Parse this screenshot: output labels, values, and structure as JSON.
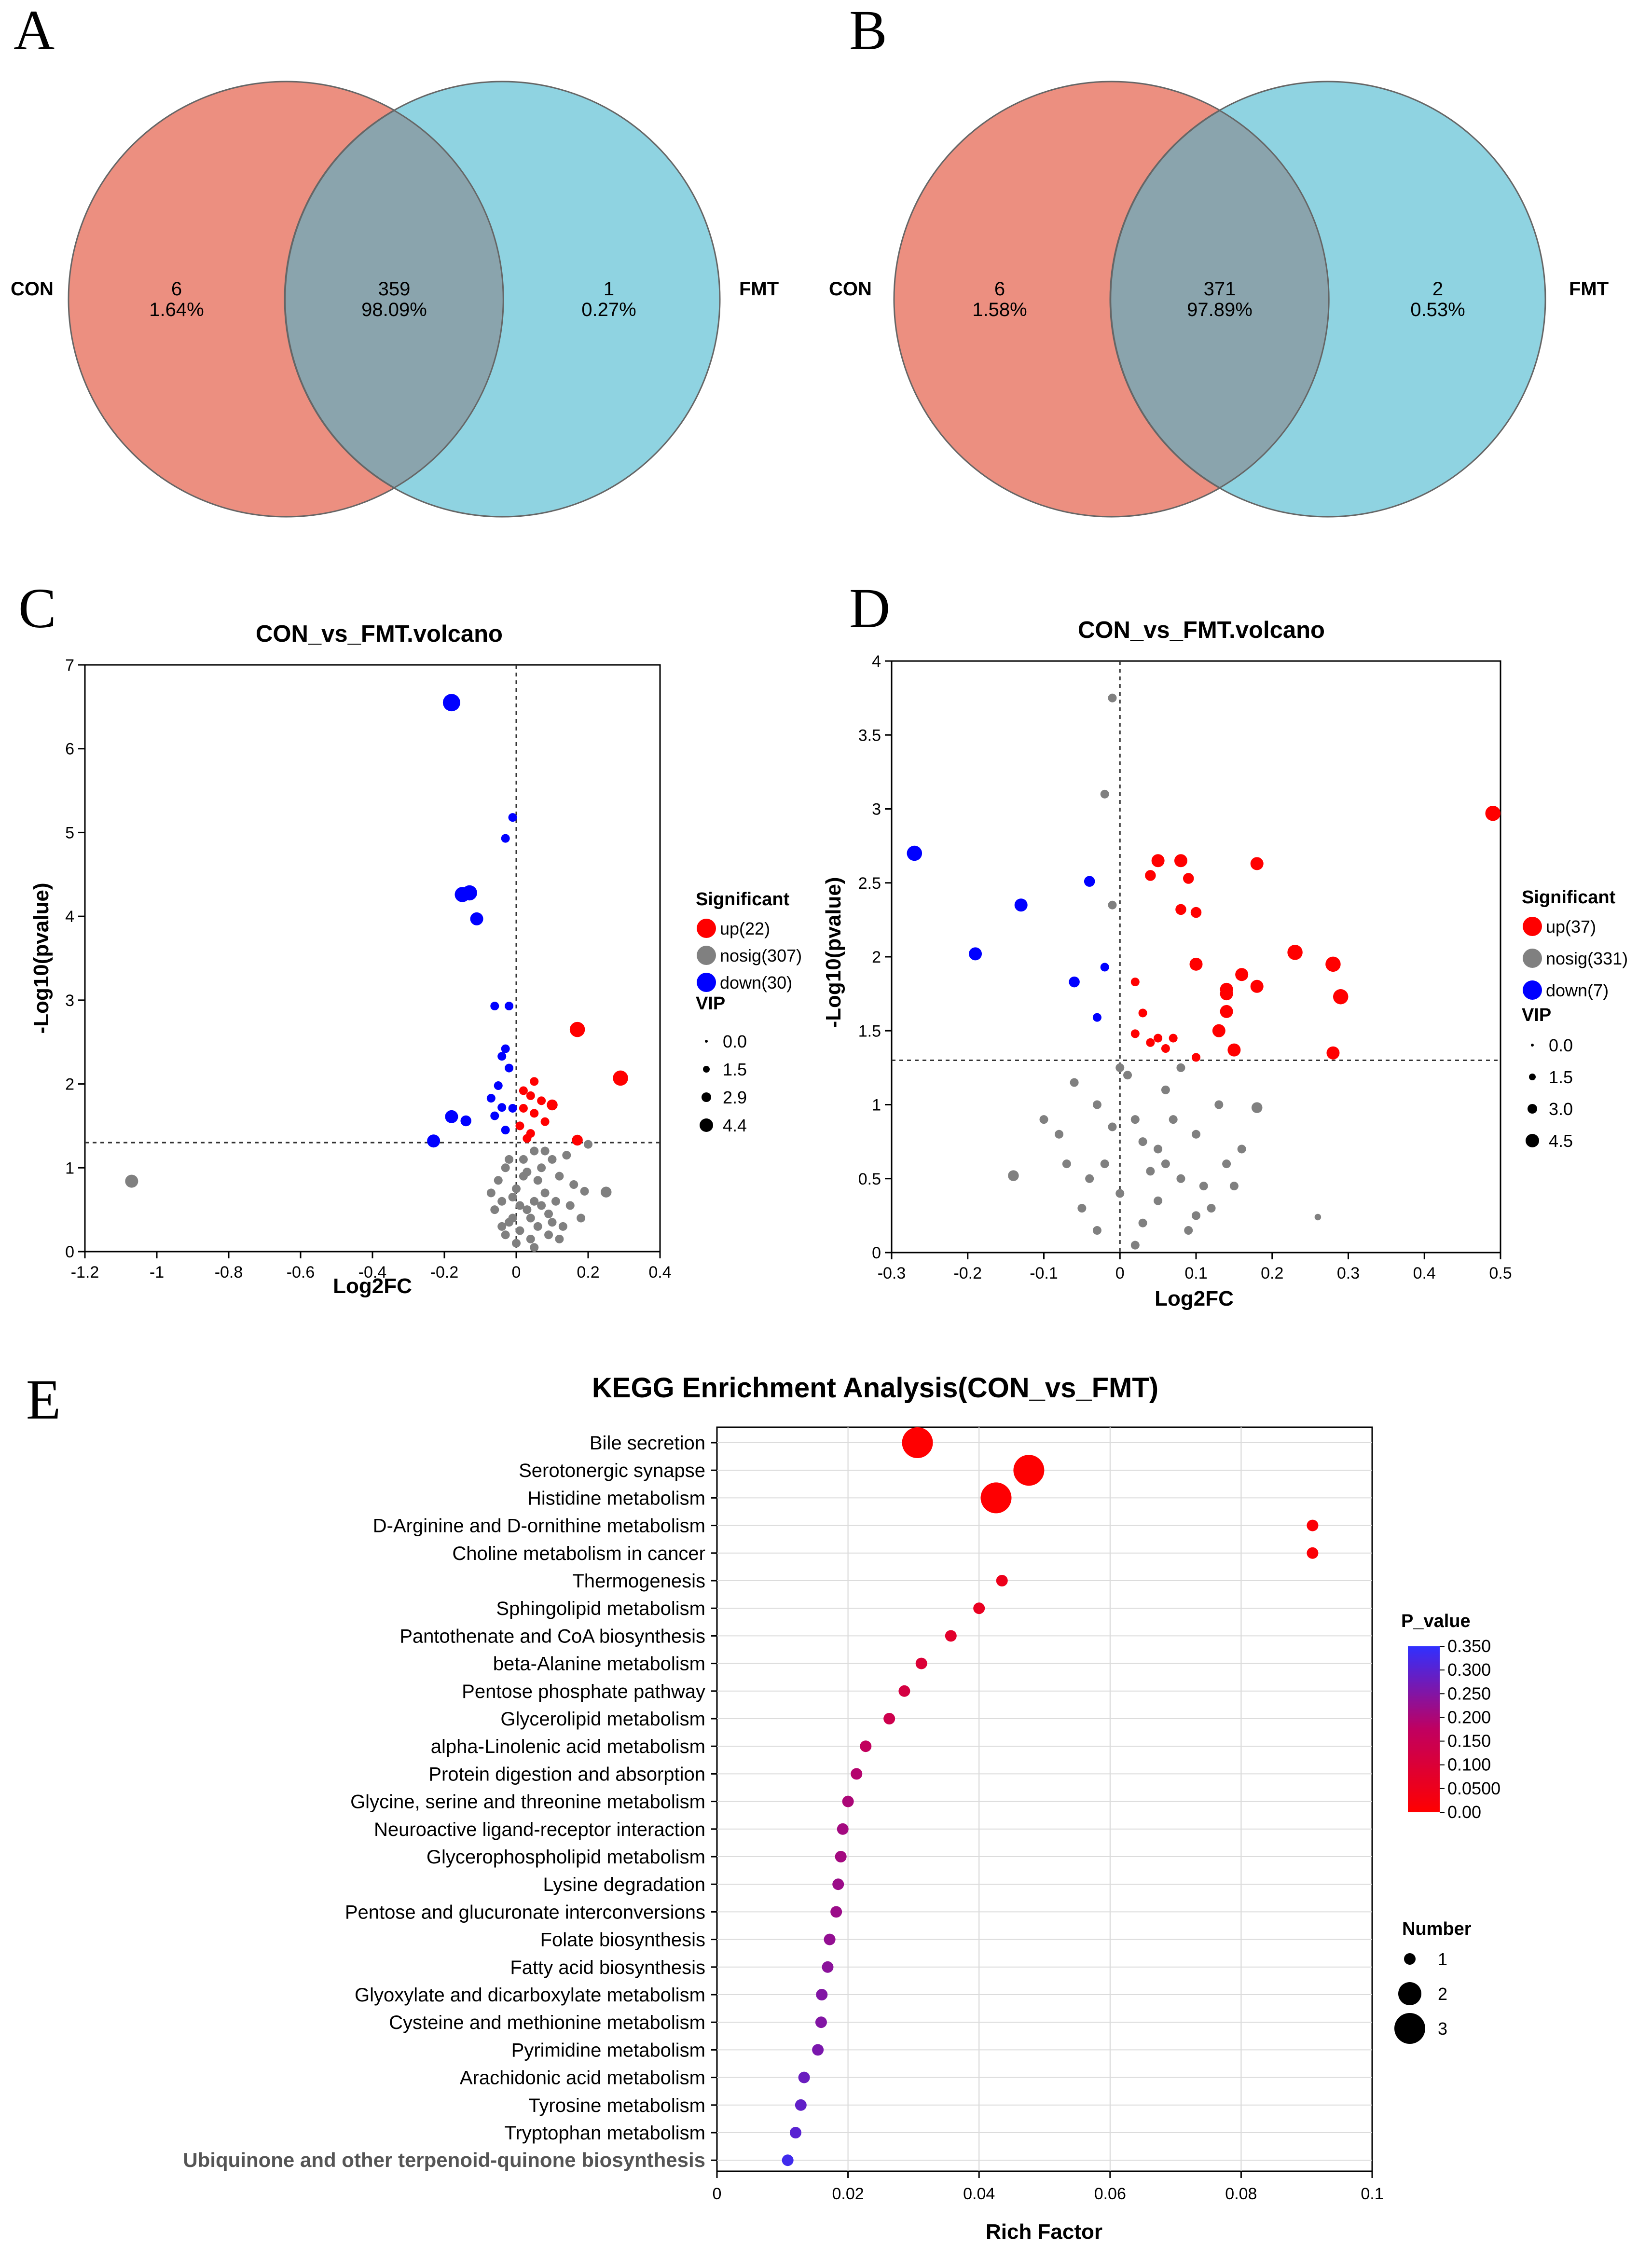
{
  "panels": {
    "a": {
      "letter": "A"
    },
    "b": {
      "letter": "B"
    },
    "c": {
      "letter": "C"
    },
    "d": {
      "letter": "D"
    },
    "e": {
      "letter": "E"
    }
  },
  "colors": {
    "con": "#ec8f80",
    "fmt": "#8fd3e1",
    "overlap": "#8aa4ad",
    "up": "#ff0000",
    "down": "#0000ff",
    "nosig": "#808080"
  },
  "chart_data": [
    {
      "type": "venn",
      "id": "A",
      "left_label": "CON",
      "right_label": "FMT",
      "regions": {
        "left_only": {
          "count": "6",
          "percent": "1.64%"
        },
        "both": {
          "count": "359",
          "percent": "98.09%"
        },
        "right_only": {
          "count": "1",
          "percent": "0.27%"
        }
      }
    },
    {
      "type": "venn",
      "id": "B",
      "left_label": "CON",
      "right_label": "FMT",
      "regions": {
        "left_only": {
          "count": "6",
          "percent": "1.58%"
        },
        "both": {
          "count": "371",
          "percent": "97.89%"
        },
        "right_only": {
          "count": "2",
          "percent": "0.53%"
        }
      }
    },
    {
      "type": "scatter",
      "id": "C",
      "title": "CON_vs_FMT.volcano",
      "xlabel": "Log2FC",
      "ylabel": "-Log10(pvalue)",
      "xlim": [
        -1.2,
        0.4
      ],
      "ylim": [
        0,
        7
      ],
      "xticks": [
        "-1.2",
        "-1",
        "-0.8",
        "-0.6",
        "-0.4",
        "-0.2",
        "0",
        "0.2",
        "0.4"
      ],
      "yticks": [
        "0",
        "1",
        "2",
        "3",
        "4",
        "5",
        "6",
        "7"
      ],
      "threshold_y": 1.3,
      "legend_significant_title": "Significant",
      "legend_significant": [
        {
          "key": "up",
          "label": "up(22)"
        },
        {
          "key": "nosig",
          "label": "nosig(307)"
        },
        {
          "key": "down",
          "label": "down(30)"
        }
      ],
      "legend_vip_title": "VIP",
      "legend_vip": [
        "0.0",
        "1.5",
        "2.9",
        "4.4"
      ],
      "points": {
        "down": [
          [
            -0.18,
            6.55,
            4
          ],
          [
            -0.01,
            5.18,
            2
          ],
          [
            -0.03,
            4.93,
            2
          ],
          [
            -0.13,
            4.28,
            3.5
          ],
          [
            -0.15,
            4.26,
            3.5
          ],
          [
            -0.11,
            3.97,
            3
          ],
          [
            -0.06,
            2.93,
            2
          ],
          [
            -0.02,
            2.93,
            2
          ],
          [
            -0.03,
            2.42,
            2
          ],
          [
            -0.04,
            2.33,
            2
          ],
          [
            -0.02,
            2.19,
            2
          ],
          [
            -0.05,
            1.98,
            2
          ],
          [
            -0.07,
            1.83,
            2
          ],
          [
            -0.04,
            1.72,
            2
          ],
          [
            -0.01,
            1.71,
            2
          ],
          [
            -0.06,
            1.62,
            2
          ],
          [
            -0.18,
            1.61,
            3
          ],
          [
            -0.14,
            1.56,
            2.5
          ],
          [
            -0.23,
            1.32,
            3
          ],
          [
            -0.03,
            1.45,
            2
          ]
        ],
        "up": [
          [
            0.17,
            2.65,
            3.5
          ],
          [
            0.29,
            2.07,
            3.5
          ],
          [
            0.05,
            2.03,
            2
          ],
          [
            0.02,
            1.92,
            2
          ],
          [
            0.04,
            1.86,
            2
          ],
          [
            0.07,
            1.8,
            2
          ],
          [
            0.1,
            1.75,
            2.5
          ],
          [
            0.02,
            1.71,
            2
          ],
          [
            0.05,
            1.65,
            2
          ],
          [
            0.08,
            1.55,
            2
          ],
          [
            0.01,
            1.5,
            2
          ],
          [
            0.04,
            1.41,
            2
          ],
          [
            0.17,
            1.33,
            2.5
          ],
          [
            0.03,
            1.35,
            2
          ]
        ],
        "nosig": [
          [
            -1.07,
            0.84,
            3
          ],
          [
            0.25,
            0.71,
            2.5
          ],
          [
            0.19,
            0.72,
            2
          ],
          [
            0.2,
            1.28,
            2
          ],
          [
            0.1,
            1.1,
            2
          ],
          [
            0.05,
            1.2,
            2
          ],
          [
            -0.02,
            1.1,
            2
          ],
          [
            0.12,
            0.9,
            2
          ],
          [
            0.15,
            0.55,
            2
          ],
          [
            0.08,
            0.7,
            2
          ],
          [
            -0.04,
            0.6,
            2
          ],
          [
            0.02,
            0.9,
            2
          ],
          [
            -0.01,
            0.4,
            2
          ],
          [
            0.06,
            0.3,
            2
          ],
          [
            0.03,
            0.5,
            2
          ],
          [
            -0.03,
            0.2,
            2
          ],
          [
            0.09,
            0.45,
            2
          ],
          [
            0.0,
            0.75,
            2
          ],
          [
            0.04,
            0.15,
            2
          ],
          [
            -0.05,
            0.85,
            2
          ],
          [
            0.11,
            0.6,
            2
          ],
          [
            0.13,
            0.3,
            2
          ],
          [
            -0.06,
            0.5,
            2
          ],
          [
            0.07,
            1.0,
            2
          ],
          [
            0.01,
            0.25,
            2
          ],
          [
            0.16,
            0.8,
            2
          ],
          [
            -0.02,
            0.35,
            2
          ],
          [
            0.05,
            0.6,
            2
          ],
          [
            0.09,
            0.2,
            2
          ],
          [
            0.02,
            1.1,
            2
          ],
          [
            -0.07,
            0.7,
            2
          ],
          [
            0.14,
            1.15,
            2
          ],
          [
            0.06,
            0.85,
            2
          ],
          [
            0.0,
            0.1,
            2
          ],
          [
            0.03,
            0.95,
            2
          ],
          [
            -0.01,
            0.65,
            2
          ],
          [
            0.1,
            0.35,
            2
          ],
          [
            0.08,
            1.2,
            2
          ],
          [
            0.04,
            0.4,
            2
          ],
          [
            -0.03,
            1.0,
            2
          ],
          [
            0.12,
            0.15,
            2
          ],
          [
            0.01,
            0.55,
            2
          ],
          [
            0.07,
            0.55,
            2
          ],
          [
            -0.04,
            0.3,
            2
          ],
          [
            0.05,
            0.05,
            2
          ],
          [
            0.18,
            0.4,
            2
          ]
        ]
      }
    },
    {
      "type": "scatter",
      "id": "D",
      "title": "CON_vs_FMT.volcano",
      "xlabel": "Log2FC",
      "ylabel": "-Log10(pvalue)",
      "xlim": [
        -0.3,
        0.5
      ],
      "ylim": [
        0,
        4
      ],
      "xticks": [
        "-0.3",
        "-0.2",
        "-0.1",
        "0",
        "0.1",
        "0.2",
        "0.3",
        "0.4",
        "0.5"
      ],
      "yticks": [
        "0",
        "0.5",
        "1",
        "1.5",
        "2",
        "2.5",
        "3",
        "3.5",
        "4"
      ],
      "threshold_y": 1.3,
      "legend_significant_title": "Significant",
      "legend_significant": [
        {
          "key": "up",
          "label": "up(37)"
        },
        {
          "key": "nosig",
          "label": "nosig(331)"
        },
        {
          "key": "down",
          "label": "down(7)"
        }
      ],
      "legend_vip_title": "VIP",
      "legend_vip": [
        "0.0",
        "1.5",
        "3.0",
        "4.5"
      ],
      "points": {
        "down": [
          [
            -0.27,
            2.7,
            3.5
          ],
          [
            -0.13,
            2.35,
            3
          ],
          [
            -0.19,
            2.02,
            3
          ],
          [
            -0.04,
            2.51,
            2.5
          ],
          [
            -0.06,
            1.83,
            2.5
          ],
          [
            -0.02,
            1.93,
            2
          ],
          [
            -0.03,
            1.59,
            2
          ]
        ],
        "up": [
          [
            0.49,
            2.97,
            3.5
          ],
          [
            0.05,
            2.65,
            3
          ],
          [
            0.08,
            2.65,
            3
          ],
          [
            0.18,
            2.63,
            3
          ],
          [
            0.04,
            2.55,
            2.5
          ],
          [
            0.09,
            2.53,
            2.5
          ],
          [
            0.08,
            2.32,
            2.5
          ],
          [
            0.1,
            2.3,
            2.5
          ],
          [
            0.23,
            2.03,
            3.5
          ],
          [
            0.28,
            1.95,
            3.5
          ],
          [
            0.1,
            1.95,
            3
          ],
          [
            0.18,
            1.8,
            3
          ],
          [
            0.14,
            1.78,
            3
          ],
          [
            0.14,
            1.75,
            3
          ],
          [
            0.29,
            1.73,
            3.5
          ],
          [
            0.16,
            1.88,
            3
          ],
          [
            0.14,
            1.63,
            3
          ],
          [
            0.02,
            1.83,
            2
          ],
          [
            0.03,
            1.62,
            2
          ],
          [
            0.13,
            1.5,
            3
          ],
          [
            0.05,
            1.45,
            2
          ],
          [
            0.07,
            1.45,
            2
          ],
          [
            0.02,
            1.48,
            2
          ],
          [
            0.04,
            1.42,
            2
          ],
          [
            0.15,
            1.37,
            3
          ],
          [
            0.28,
            1.35,
            3
          ],
          [
            0.1,
            1.32,
            2
          ],
          [
            0.06,
            1.38,
            2
          ]
        ],
        "nosig": [
          [
            -0.01,
            3.75,
            2
          ],
          [
            -0.02,
            3.1,
            2
          ],
          [
            -0.01,
            2.35,
            2
          ],
          [
            -0.14,
            0.52,
            2.5
          ],
          [
            0.18,
            0.98,
            2.5
          ],
          [
            0.26,
            0.24,
            1.5
          ],
          [
            -0.06,
            1.15,
            2
          ],
          [
            -0.03,
            1.0,
            2
          ],
          [
            0.02,
            0.9,
            2
          ],
          [
            0.05,
            0.7,
            2
          ],
          [
            0.08,
            0.5,
            2
          ],
          [
            0.1,
            0.8,
            2
          ],
          [
            -0.02,
            0.6,
            2
          ],
          [
            0.0,
            0.4,
            2
          ],
          [
            0.03,
            0.2,
            2
          ],
          [
            0.12,
            0.3,
            2
          ],
          [
            -0.05,
            0.3,
            2
          ],
          [
            0.06,
            1.1,
            2
          ],
          [
            0.14,
            0.6,
            2
          ],
          [
            0.01,
            1.2,
            2
          ],
          [
            -0.08,
            0.8,
            2
          ],
          [
            0.09,
            0.15,
            2
          ],
          [
            0.04,
            0.55,
            2
          ],
          [
            -0.01,
            0.85,
            2
          ],
          [
            0.07,
            0.9,
            2
          ],
          [
            0.11,
            0.45,
            2
          ],
          [
            -0.04,
            0.5,
            2
          ],
          [
            0.02,
            0.05,
            2
          ],
          [
            0.16,
            0.7,
            2
          ],
          [
            0.05,
            0.35,
            2
          ],
          [
            -0.07,
            0.6,
            2
          ],
          [
            0.13,
            1.0,
            2
          ],
          [
            0.0,
            1.25,
            2
          ],
          [
            0.08,
            1.25,
            2
          ],
          [
            -0.03,
            0.15,
            2
          ],
          [
            0.03,
            0.75,
            2
          ],
          [
            0.1,
            0.25,
            2
          ],
          [
            0.06,
            0.6,
            2
          ],
          [
            -0.1,
            0.9,
            2
          ],
          [
            0.15,
            0.45,
            2
          ]
        ]
      }
    },
    {
      "type": "scatter",
      "id": "E",
      "title": "KEGG Enrichment Analysis(CON_vs_FMT)",
      "xlabel": "Rich Factor",
      "xlim": [
        0,
        0.1
      ],
      "xticks": [
        "0",
        "0.02",
        "0.04",
        "0.06",
        "0.08",
        "0.1"
      ],
      "categories": [
        "Bile secretion",
        "Serotonergic synapse",
        "Histidine metabolism",
        "D-Arginine and D-ornithine metabolism",
        "Choline metabolism in cancer",
        "Thermogenesis",
        "Sphingolipid metabolism",
        "Pantothenate and CoA biosynthesis",
        "beta-Alanine metabolism",
        "Pentose phosphate pathway",
        "Glycerolipid metabolism",
        "alpha-Linolenic acid metabolism",
        "Protein digestion and absorption",
        "Glycine, serine and threonine metabolism",
        "Neuroactive ligand-receptor interaction",
        "Glycerophospholipid metabolism",
        "Lysine degradation",
        "Pentose and glucuronate interconversions",
        "Folate biosynthesis",
        "Fatty acid biosynthesis",
        "Glyoxylate and dicarboxylate metabolism",
        "Cysteine and methionine metabolism",
        "Pyrimidine metabolism",
        "Arachidonic acid metabolism",
        "Tyrosine metabolism",
        "Tryptophan metabolism",
        "Ubiquinone and other terpenoid-quinone biosynthesis"
      ],
      "rich_factor": [
        0.0306,
        0.0476,
        0.0426,
        0.0909,
        0.0909,
        0.0435,
        0.04,
        0.0357,
        0.0312,
        0.0286,
        0.0263,
        0.0227,
        0.0213,
        0.02,
        0.0192,
        0.0189,
        0.0185,
        0.0182,
        0.0172,
        0.0169,
        0.016,
        0.0159,
        0.0154,
        0.0133,
        0.0128,
        0.012,
        0.0108
      ],
      "number": [
        3,
        3,
        3,
        1,
        1,
        1,
        1,
        1,
        1,
        1,
        1,
        1,
        1,
        1,
        1,
        1,
        1,
        1,
        1,
        1,
        1,
        1,
        1,
        1,
        1,
        1,
        1
      ],
      "p_value": [
        0.001,
        0.002,
        0.003,
        0.012,
        0.012,
        0.05,
        0.06,
        0.08,
        0.1,
        0.12,
        0.14,
        0.17,
        0.19,
        0.2,
        0.21,
        0.21,
        0.22,
        0.22,
        0.23,
        0.24,
        0.25,
        0.25,
        0.26,
        0.28,
        0.29,
        0.3,
        0.33
      ],
      "legend_pvalue_title": "P_value",
      "legend_pvalue_ticks": [
        "0.350",
        "0.300",
        "0.250",
        "0.200",
        "0.150",
        "0.100",
        "0.0500",
        "0.00"
      ],
      "legend_number_title": "Number",
      "legend_number": [
        "1",
        "2",
        "3"
      ]
    }
  ]
}
